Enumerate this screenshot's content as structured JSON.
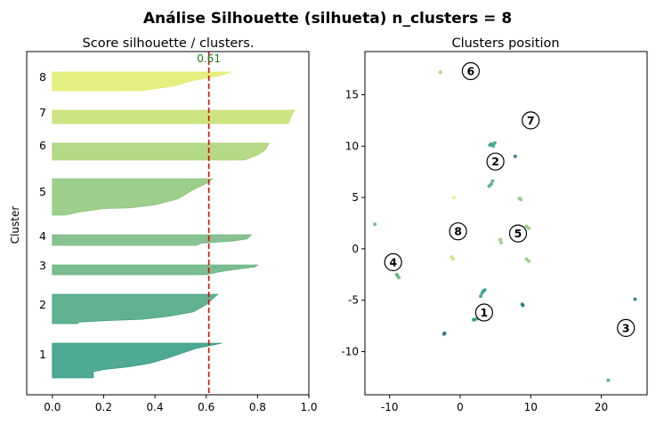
{
  "figure": {
    "suptitle": "Análise Silhouette (silhueta) n_clusters = 8"
  },
  "chart_data": [
    {
      "type": "area",
      "title": "Score silhouette / clusters.",
      "xlabel": "",
      "ylabel": "Cluster",
      "xlim": [
        -0.1,
        1.0
      ],
      "xticks": [
        "0.0",
        "0.2",
        "0.4",
        "0.6",
        "0.8",
        "1.0"
      ],
      "grid": false,
      "mean_line": {
        "value": 0.61,
        "label": "0.61",
        "color": "#e00000"
      },
      "clusters": [
        {
          "label": "1",
          "color": "#2f9a82",
          "profile": [
            [
              0.66,
              0
            ],
            [
              0.63,
              0.05
            ],
            [
              0.56,
              0.15
            ],
            [
              0.5,
              0.3
            ],
            [
              0.44,
              0.45
            ],
            [
              0.38,
              0.58
            ],
            [
              0.3,
              0.68
            ],
            [
              0.2,
              0.76
            ],
            [
              0.16,
              0.82
            ],
            [
              0.16,
              1
            ]
          ]
        },
        {
          "label": "2",
          "color": "#45a47c",
          "profile": [
            [
              0.645,
              0
            ],
            [
              0.625,
              0.15
            ],
            [
              0.6,
              0.35
            ],
            [
              0.55,
              0.6
            ],
            [
              0.45,
              0.75
            ],
            [
              0.35,
              0.85
            ],
            [
              0.2,
              0.9
            ],
            [
              0.1,
              0.95
            ],
            [
              0.1,
              1
            ]
          ]
        },
        {
          "label": "3",
          "color": "#64b07e",
          "profile": [
            [
              0.8,
              0
            ],
            [
              0.79,
              0.2
            ],
            [
              0.7,
              0.5
            ],
            [
              0.64,
              0.75
            ],
            [
              0.6,
              1
            ]
          ]
        },
        {
          "label": "4",
          "color": "#74b77f",
          "profile": [
            [
              0.775,
              0
            ],
            [
              0.76,
              0.4
            ],
            [
              0.7,
              0.6
            ],
            [
              0.58,
              0.8
            ],
            [
              0.56,
              1
            ]
          ]
        },
        {
          "label": "5",
          "color": "#8cc577",
          "profile": [
            [
              0.625,
              0
            ],
            [
              0.61,
              0.1
            ],
            [
              0.55,
              0.3
            ],
            [
              0.49,
              0.55
            ],
            [
              0.4,
              0.72
            ],
            [
              0.3,
              0.8
            ],
            [
              0.2,
              0.82
            ],
            [
              0.1,
              0.92
            ],
            [
              0.05,
              1
            ]
          ]
        },
        {
          "label": "6",
          "color": "#a8d272",
          "profile": [
            [
              0.845,
              0
            ],
            [
              0.83,
              0.4
            ],
            [
              0.8,
              0.7
            ],
            [
              0.75,
              1
            ]
          ]
        },
        {
          "label": "7",
          "color": "#c3df6f",
          "profile": [
            [
              0.945,
              0
            ],
            [
              0.93,
              0.5
            ],
            [
              0.92,
              1
            ]
          ]
        },
        {
          "label": "8",
          "color": "#e1ed6a",
          "profile": [
            [
              0.695,
              0
            ],
            [
              0.65,
              0.2
            ],
            [
              0.55,
              0.45
            ],
            [
              0.47,
              0.75
            ],
            [
              0.35,
              1
            ]
          ]
        }
      ]
    },
    {
      "type": "scatter",
      "title": "Clusters position",
      "xlim": [
        -13.5,
        26.5
      ],
      "ylim": [
        -14.2,
        19.2
      ],
      "xticks": [
        -10,
        0,
        10,
        20
      ],
      "yticks": [
        -10,
        -5,
        0,
        5,
        10,
        15
      ],
      "grid": false,
      "centers": [
        {
          "label": "1",
          "x": 3.4,
          "y": -6.2
        },
        {
          "label": "2",
          "x": 5.0,
          "y": 8.5
        },
        {
          "label": "3",
          "x": 23.5,
          "y": -7.7
        },
        {
          "label": "4",
          "x": -9.5,
          "y": -1.3
        },
        {
          "label": "5",
          "x": 8.2,
          "y": 1.5
        },
        {
          "label": "6",
          "x": 1.5,
          "y": 17.3
        },
        {
          "label": "7",
          "x": 10.0,
          "y": 12.5
        },
        {
          "label": "8",
          "x": -0.3,
          "y": 1.7
        }
      ],
      "points": [
        {
          "x": 3.3,
          "y": -4.1,
          "color": "#2f9a82"
        },
        {
          "x": 3.5,
          "y": -4.0,
          "color": "#2f9a82"
        },
        {
          "x": 3.1,
          "y": -4.3,
          "color": "#2f9a82"
        },
        {
          "x": 2.9,
          "y": -4.6,
          "color": "#2f9a82"
        },
        {
          "x": 2.0,
          "y": -6.9,
          "color": "#2f9a82"
        },
        {
          "x": 2.4,
          "y": -6.8,
          "color": "#2f9a82"
        },
        {
          "x": 1.9,
          "y": -6.9,
          "color": "#2f9a82"
        },
        {
          "x": -2.3,
          "y": -8.3,
          "color": "#23757a"
        },
        {
          "x": -2.2,
          "y": -8.2,
          "color": "#23757a"
        },
        {
          "x": 4.4,
          "y": 10.2,
          "color": "#2f9a82"
        },
        {
          "x": 4.7,
          "y": 10.0,
          "color": "#2f9a82"
        },
        {
          "x": 4.9,
          "y": 10.3,
          "color": "#2f9a82"
        },
        {
          "x": 4.2,
          "y": 10.1,
          "color": "#2f9a82"
        },
        {
          "x": 7.8,
          "y": 9.0,
          "color": "#23757a"
        },
        {
          "x": 4.4,
          "y": 6.3,
          "color": "#45a47c"
        },
        {
          "x": 4.6,
          "y": 6.6,
          "color": "#45a47c"
        },
        {
          "x": 4.1,
          "y": 6.1,
          "color": "#45a47c"
        },
        {
          "x": 24.8,
          "y": -4.9,
          "color": "#23757a"
        },
        {
          "x": 21.0,
          "y": -12.8,
          "color": "#45a47c"
        },
        {
          "x": -8.9,
          "y": -2.6,
          "color": "#64b07e"
        },
        {
          "x": -8.7,
          "y": -2.8,
          "color": "#64b07e"
        },
        {
          "x": -9.0,
          "y": -2.5,
          "color": "#64b07e"
        },
        {
          "x": -12.1,
          "y": 2.4,
          "color": "#64b07e"
        },
        {
          "x": 8.8,
          "y": -5.4,
          "color": "#23757a"
        },
        {
          "x": 8.9,
          "y": -5.5,
          "color": "#23757a"
        },
        {
          "x": 9.4,
          "y": -1.0,
          "color": "#8cc577"
        },
        {
          "x": 9.7,
          "y": -1.2,
          "color": "#8cc577"
        },
        {
          "x": 9.4,
          "y": 2.2,
          "color": "#8cc577"
        },
        {
          "x": 9.7,
          "y": 2.0,
          "color": "#8cc577"
        },
        {
          "x": 8.6,
          "y": 4.8,
          "color": "#8cc577"
        },
        {
          "x": 8.4,
          "y": 4.9,
          "color": "#8cc577"
        },
        {
          "x": 5.7,
          "y": 0.9,
          "color": "#8cc577"
        },
        {
          "x": 5.8,
          "y": 0.6,
          "color": "#8cc577"
        },
        {
          "x": -1.2,
          "y": -0.8,
          "color": "#c3df6f"
        },
        {
          "x": -1.0,
          "y": -1.0,
          "color": "#c3df6f"
        },
        {
          "x": -0.9,
          "y": 5.0,
          "color": "#e1ed6a"
        },
        {
          "x": -2.8,
          "y": 17.2,
          "color": "#a8d272"
        }
      ]
    }
  ]
}
